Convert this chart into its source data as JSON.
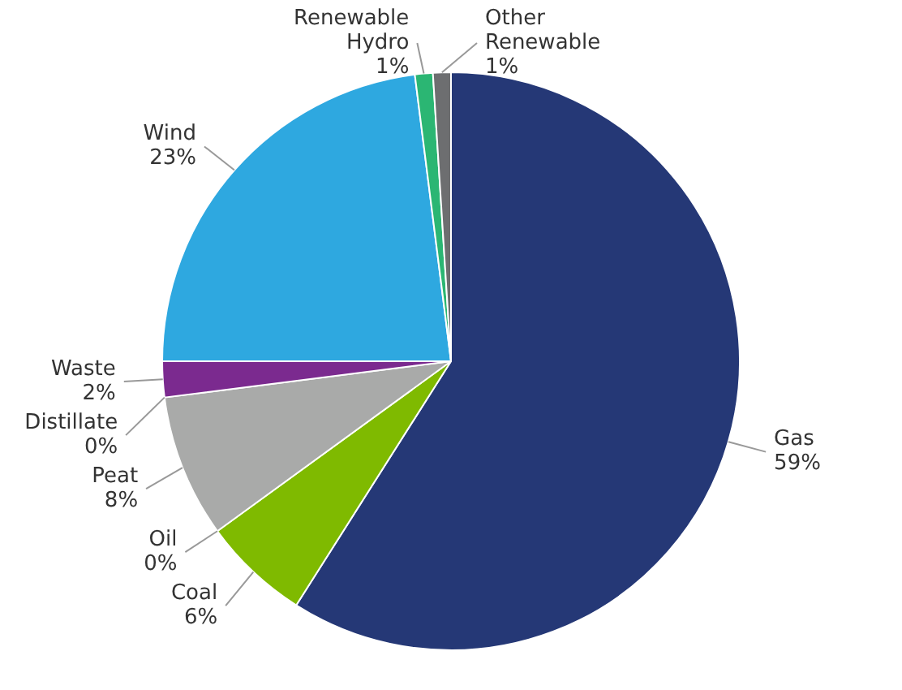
{
  "chart_data": {
    "type": "pie",
    "categories": [
      "Gas",
      "Coal",
      "Oil",
      "Peat",
      "Distillate",
      "Waste",
      "Wind",
      "Renewable Hydro",
      "Other Renewable"
    ],
    "values": [
      59,
      6,
      0,
      8,
      0,
      2,
      23,
      1,
      1
    ],
    "colors": [
      "#253876",
      "#7fba00",
      "#6b4c2a",
      "#a9aaa9",
      "#c0504d",
      "#7b2a8f",
      "#2ea8e0",
      "#2bb673",
      "#6d6e70"
    ],
    "value_labels": [
      "59%",
      "6%",
      "0%",
      "8%",
      "0%",
      "2%",
      "23%",
      "1%",
      "1%"
    ]
  }
}
